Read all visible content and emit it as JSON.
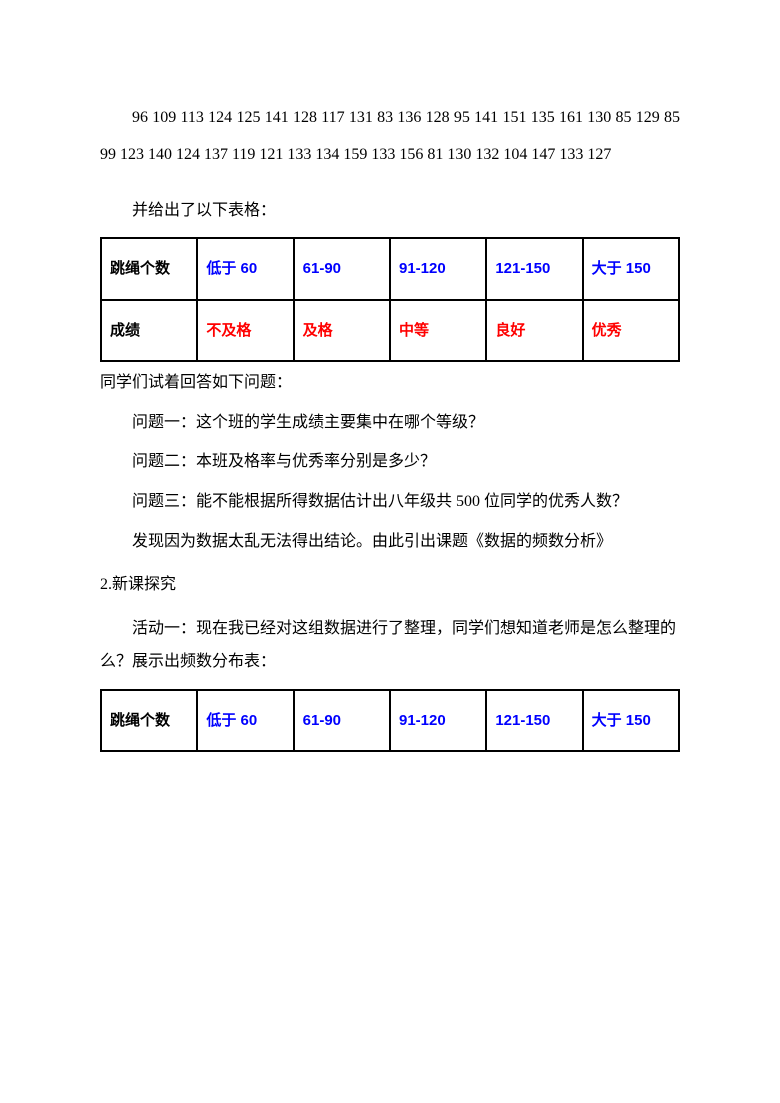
{
  "raw_numbers": "96 109 113 124 125 141 128 117 131 83 136 128 95 141 151 135 161 130 85 129 85 99 123 140 124 137 119 121 133 134 159 133 156 81 130 132 104 147 133 127",
  "intro_after_numbers": "并给出了以下表格：",
  "table1": {
    "row1": {
      "label": "跳绳个数",
      "c1": "低于 60",
      "c2": "61-90",
      "c3": "91-120",
      "c4": "121-150",
      "c5": "大于 150"
    },
    "row2": {
      "label": "成绩",
      "c1": "不及格",
      "c2": "及格",
      "c3": "中等",
      "c4": "良好",
      "c5": "优秀"
    }
  },
  "after_table1": "同学们试着回答如下问题：",
  "q1": "问题一：这个班的学生成绩主要集中在哪个等级？",
  "q2": "问题二：本班及格率与优秀率分别是多少？",
  "q3": "问题三：能不能根据所得数据估计出八年级共 500 位同学的优秀人数？",
  "conclusion": "发现因为数据太乱无法得出结论。由此引出课题《数据的频数分析》",
  "section2_title": "2.新课探究",
  "activity1": "活动一：现在我已经对这组数据进行了整理，同学们想知道老师是怎么整理的么？展示出频数分布表：",
  "table2": {
    "row1": {
      "label": "跳绳个数",
      "c1": "低于 60",
      "c2": "61-90",
      "c3": "91-120",
      "c4": "121-150",
      "c5": "大于 150"
    }
  }
}
